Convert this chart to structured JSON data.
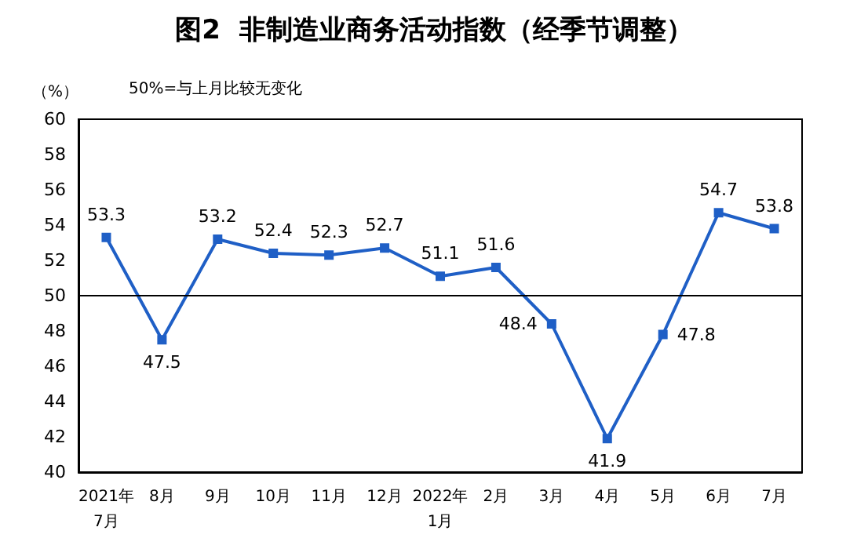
{
  "chart_data": {
    "type": "line",
    "title": "图2  非制造业商务活动指数（经季节调整）",
    "ylabel": "（%）",
    "annotations": [
      "50%=与上月比较无变化"
    ],
    "categories": [
      "2021年\n7月",
      "8月",
      "9月",
      "10月",
      "11月",
      "12月",
      "2022年\n1月",
      "2月",
      "3月",
      "4月",
      "5月",
      "6月",
      "7月"
    ],
    "series": [
      {
        "color": "#1f5fc6",
        "values": [
          53.3,
          47.5,
          53.2,
          52.4,
          52.3,
          52.7,
          51.1,
          51.6,
          48.4,
          41.9,
          47.8,
          54.7,
          53.8
        ]
      }
    ],
    "ylim": [
      40,
      60
    ],
    "yticks": [
      40,
      42,
      44,
      46,
      48,
      50,
      52,
      54,
      56,
      58,
      60
    ],
    "ref_lines": [
      {
        "axis": "y",
        "value": 50,
        "color": "#000000"
      }
    ],
    "data_labels": true,
    "marker": "square",
    "line_style": "solid",
    "grid": false
  }
}
